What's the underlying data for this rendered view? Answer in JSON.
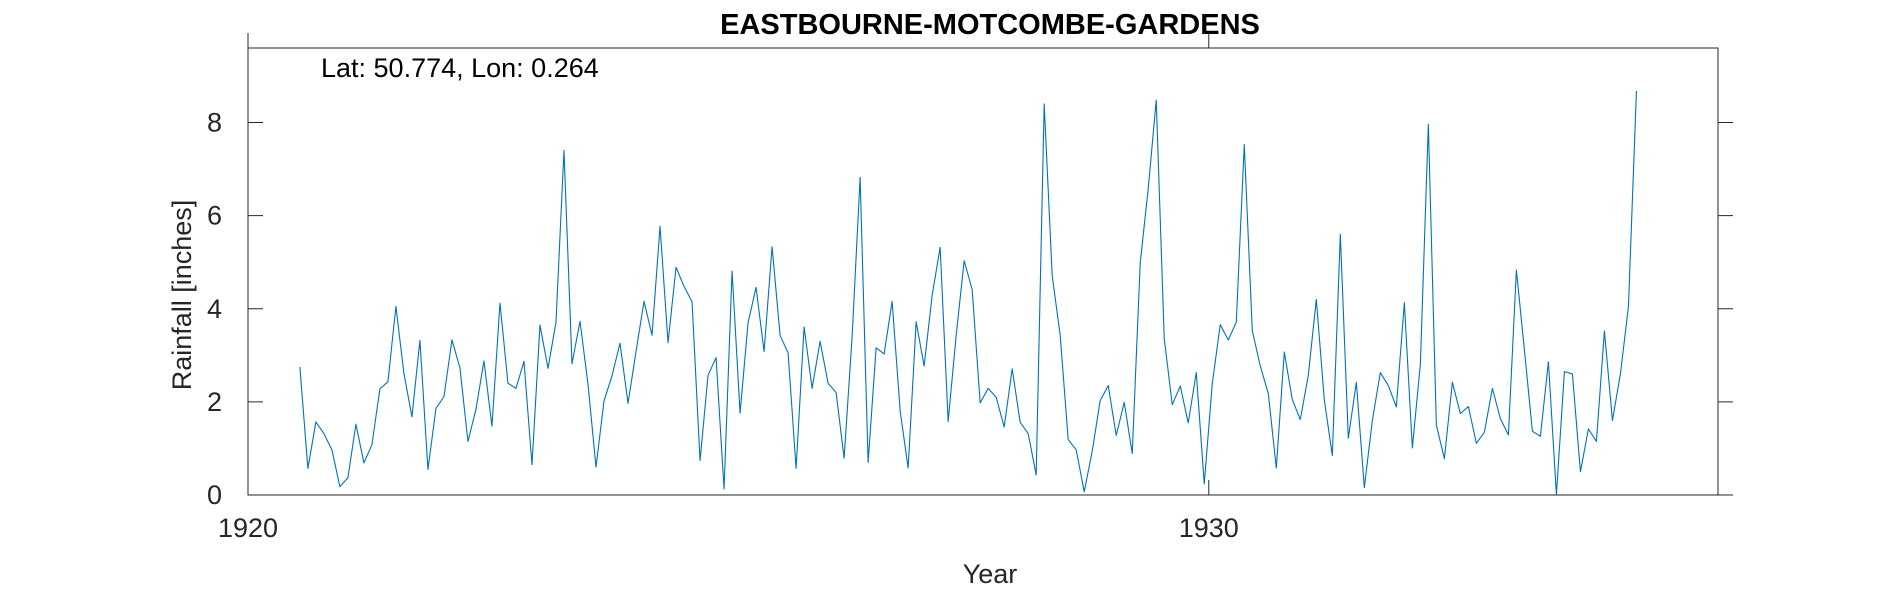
{
  "chart_data": {
    "type": "line",
    "title": "EASTBOURNE-MOTCOMBE-GARDENS",
    "annotation": "Lat: 50.774, Lon: 0.264",
    "xlabel": "Year",
    "ylabel": "Rainfall [inches]",
    "xlim": [
      1920,
      1935.3
    ],
    "ylim": [
      0,
      9.6
    ],
    "xticks": [
      1920,
      1930
    ],
    "yticks": [
      0,
      2,
      4,
      6,
      8
    ],
    "grid": false,
    "series_color": "#0072BD",
    "series": [
      {
        "start_year": 1920.54,
        "step": 0.0833,
        "values": [
          2.75,
          0.57,
          1.57,
          1.32,
          0.97,
          0.18,
          0.37,
          1.52,
          0.69,
          1.08,
          2.28,
          2.43,
          4.05,
          2.61,
          1.68,
          3.32,
          0.55,
          1.86,
          2.11,
          3.33,
          2.73,
          1.15,
          1.84,
          2.88,
          1.48,
          4.12,
          2.4,
          2.29,
          2.87,
          0.65,
          3.65,
          2.72,
          3.71,
          7.4,
          2.82,
          3.73,
          2.38,
          0.6,
          2.02,
          2.56,
          3.26,
          1.97,
          3.08,
          4.16,
          3.43,
          5.77,
          3.27,
          4.89,
          4.48,
          4.15,
          0.74,
          2.57,
          2.95,
          0.13,
          4.81,
          1.76,
          3.7,
          4.46,
          3.08,
          5.33,
          3.43,
          3.05,
          0.57,
          3.61,
          2.29,
          3.3,
          2.4,
          2.2,
          0.79,
          3.4,
          6.82,
          0.7,
          3.16,
          3.03,
          4.16,
          1.81,
          0.58,
          3.72,
          2.77,
          4.29,
          5.32,
          1.58,
          3.43,
          5.03,
          4.41,
          1.98,
          2.29,
          2.1,
          1.46,
          2.71,
          1.56,
          1.32,
          0.43,
          8.4,
          4.71,
          3.43,
          1.19,
          0.97,
          0.07,
          0.94,
          2.03,
          2.35,
          1.28,
          1.99,
          0.89,
          4.99,
          6.58,
          8.48,
          3.36,
          1.94,
          2.34,
          1.55,
          2.63,
          0.24,
          2.39,
          3.66,
          3.33,
          3.71,
          7.53,
          3.53,
          2.77,
          2.18,
          0.58,
          3.07,
          2.05,
          1.62,
          2.57,
          4.2,
          2.04,
          0.85,
          5.6,
          1.22,
          2.42,
          0.16,
          1.6,
          2.63,
          2.35,
          1.89,
          4.13,
          1.01,
          2.81,
          7.96,
          1.5,
          0.78,
          2.42,
          1.75,
          1.9,
          1.11,
          1.35,
          2.29,
          1.64,
          1.29,
          4.83,
          3.12,
          1.37,
          1.26,
          2.86,
          0.01,
          2.65,
          2.6,
          0.5,
          1.42,
          1.15,
          3.52,
          1.6,
          2.6,
          4.05,
          8.68
        ]
      }
    ]
  }
}
